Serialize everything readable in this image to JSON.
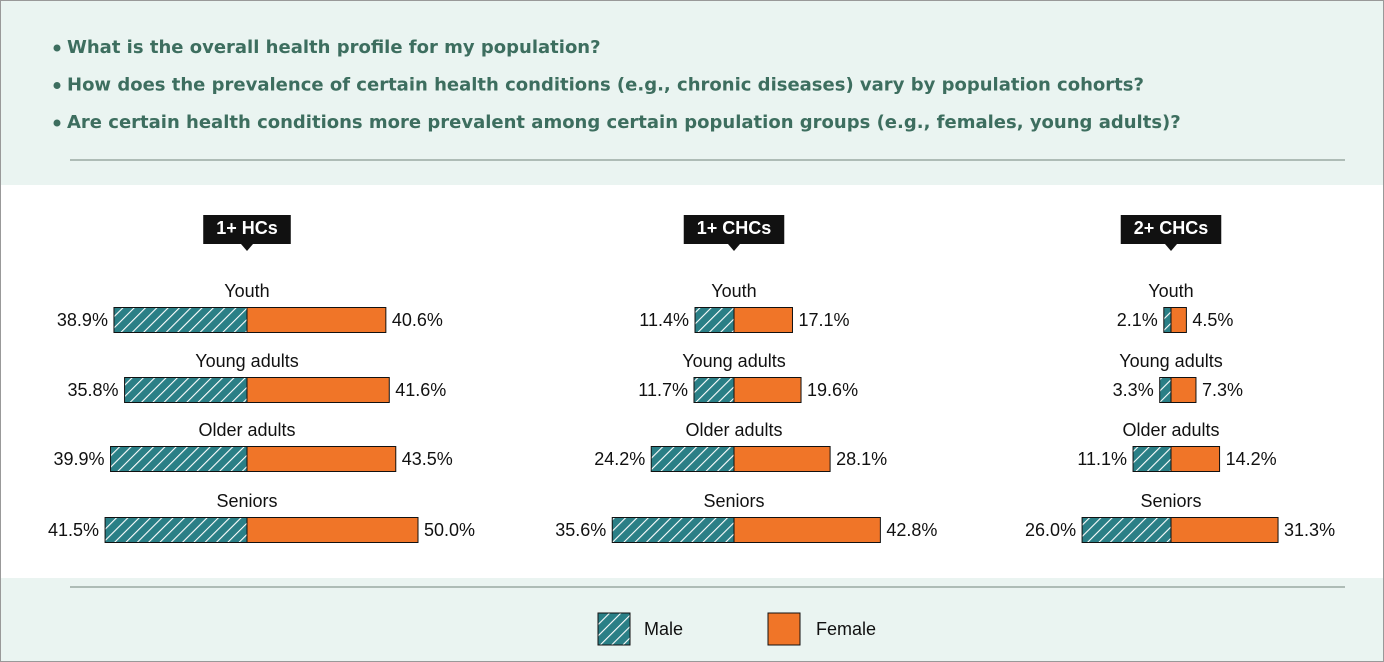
{
  "questions": [
    "What is the overall health profile for my population?",
    "How does the prevalence of certain health conditions (e.g., chronic diseases) vary by population cohorts?",
    "Are certain health conditions more prevalent among certain population groups (e.g., females, young adults)?"
  ],
  "chart_data": [
    {
      "type": "butterfly",
      "title": "1+ HCs",
      "categories": [
        "Youth",
        "Young adults",
        "Older adults",
        "Seniors"
      ],
      "series": [
        {
          "name": "Male",
          "color": "#2a7f86",
          "values": [
            38.9,
            35.8,
            39.9,
            41.5
          ],
          "value_labels": [
            "38.9%",
            "35.8%",
            "39.9%",
            "41.5%"
          ]
        },
        {
          "name": "Female",
          "color": "#f07528",
          "values": [
            40.6,
            41.6,
            43.5,
            50.0
          ],
          "value_labels": [
            "40.6%",
            "41.6%",
            "43.5%",
            "50.0%"
          ]
        }
      ]
    },
    {
      "type": "butterfly",
      "title": "1+ CHCs",
      "categories": [
        "Youth",
        "Young adults",
        "Older adults",
        "Seniors"
      ],
      "series": [
        {
          "name": "Male",
          "color": "#2a7f86",
          "values": [
            11.4,
            11.7,
            24.2,
            35.6
          ],
          "value_labels": [
            "11.4%",
            "11.7%",
            "24.2%",
            "35.6%"
          ]
        },
        {
          "name": "Female",
          "color": "#f07528",
          "values": [
            17.1,
            19.6,
            28.1,
            42.8
          ],
          "value_labels": [
            "17.1%",
            "19.6%",
            "28.1%",
            "42.8%"
          ]
        }
      ]
    },
    {
      "type": "butterfly",
      "title": "2+ CHCs",
      "categories": [
        "Youth",
        "Young adults",
        "Older adults",
        "Seniors"
      ],
      "series": [
        {
          "name": "Male",
          "color": "#2a7f86",
          "values": [
            2.1,
            3.3,
            11.1,
            26.0
          ],
          "value_labels": [
            "2.1%",
            "3.3%",
            "11.1%",
            "26.0%"
          ]
        },
        {
          "name": "Female",
          "color": "#f07528",
          "values": [
            4.5,
            7.3,
            14.2,
            31.3
          ],
          "value_labels": [
            "4.5%",
            "7.3%",
            "14.2%",
            "31.3%"
          ]
        }
      ]
    }
  ]
}
